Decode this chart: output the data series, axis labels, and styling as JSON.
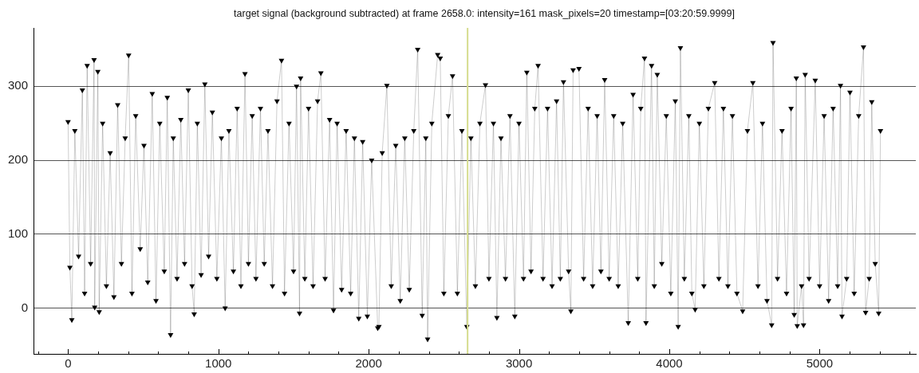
{
  "chart_data": {
    "type": "line",
    "title": "target signal (background subtracted) at frame 2658.0: intensity=161 mask_pixels=20 timestamp=[03:20:59.9999]",
    "x": [
      0,
      12,
      25,
      45,
      70,
      95,
      110,
      127,
      150,
      173,
      177,
      198,
      207,
      230,
      255,
      280,
      305,
      330,
      355,
      380,
      403,
      425,
      450,
      480,
      505,
      530,
      560,
      585,
      610,
      640,
      660,
      682,
      700,
      725,
      750,
      775,
      800,
      825,
      839,
      860,
      885,
      910,
      935,
      960,
      990,
      1020,
      1045,
      1070,
      1100,
      1125,
      1150,
      1177,
      1200,
      1225,
      1250,
      1280,
      1305,
      1330,
      1360,
      1390,
      1420,
      1440,
      1470,
      1500,
      1520,
      1540,
      1547,
      1575,
      1600,
      1630,
      1660,
      1682,
      1710,
      1740,
      1766,
      1790,
      1820,
      1850,
      1880,
      1905,
      1934,
      1960,
      1991,
      2020,
      2060,
      2068,
      2090,
      2121,
      2150,
      2180,
      2210,
      2240,
      2270,
      2300,
      2326,
      2356,
      2380,
      2392,
      2420,
      2459,
      2476,
      2500,
      2530,
      2558,
      2590,
      2620,
      2653,
      2680,
      2710,
      2740,
      2777,
      2800,
      2830,
      2853,
      2880,
      2910,
      2940,
      2972,
      3000,
      3030,
      3052,
      3080,
      3105,
      3127,
      3160,
      3190,
      3220,
      3250,
      3275,
      3296,
      3330,
      3345,
      3360,
      3399,
      3430,
      3460,
      3490,
      3520,
      3545,
      3570,
      3600,
      3630,
      3660,
      3690,
      3727,
      3759,
      3790,
      3810,
      3835,
      3845,
      3882,
      3900,
      3920,
      3950,
      3980,
      4010,
      4040,
      4059,
      4074,
      4100,
      4130,
      4150,
      4172,
      4200,
      4230,
      4260,
      4302,
      4330,
      4360,
      4390,
      4420,
      4450,
      4488,
      4520,
      4556,
      4590,
      4620,
      4650,
      4681,
      4690,
      4720,
      4750,
      4780,
      4810,
      4831,
      4845,
      4851,
      4880,
      4893,
      4904,
      4930,
      4971,
      5000,
      5030,
      5060,
      5090,
      5120,
      5139,
      5149,
      5180,
      5202,
      5230,
      5260,
      5292,
      5306,
      5330,
      5347,
      5370,
      5393,
      5405
    ],
    "values": [
      252,
      55,
      -16,
      240,
      70,
      295,
      20,
      328,
      60,
      336,
      1,
      320,
      -5,
      250,
      30,
      210,
      15,
      275,
      60,
      230,
      342,
      20,
      260,
      80,
      220,
      35,
      290,
      10,
      250,
      50,
      285,
      -36,
      230,
      40,
      255,
      60,
      295,
      30,
      -8,
      250,
      45,
      303,
      70,
      265,
      40,
      230,
      0,
      240,
      50,
      270,
      30,
      317,
      60,
      260,
      40,
      270,
      60,
      240,
      30,
      280,
      335,
      20,
      250,
      50,
      300,
      -7,
      311,
      40,
      270,
      30,
      280,
      318,
      40,
      255,
      -3,
      250,
      25,
      240,
      20,
      230,
      -14,
      225,
      -11,
      200,
      -27,
      -25,
      210,
      301,
      30,
      220,
      10,
      230,
      25,
      240,
      350,
      -10,
      230,
      -42,
      250,
      343,
      338,
      20,
      260,
      314,
      20,
      240,
      -25,
      230,
      30,
      250,
      302,
      40,
      250,
      -13,
      230,
      40,
      260,
      -11,
      250,
      40,
      319,
      50,
      270,
      328,
      40,
      270,
      30,
      280,
      40,
      306,
      50,
      -4,
      322,
      324,
      40,
      270,
      30,
      260,
      50,
      309,
      40,
      260,
      30,
      250,
      -20,
      289,
      40,
      270,
      338,
      -20,
      328,
      30,
      316,
      60,
      260,
      20,
      280,
      -25,
      352,
      40,
      260,
      20,
      -2,
      250,
      30,
      270,
      305,
      40,
      270,
      30,
      260,
      20,
      -4,
      240,
      305,
      30,
      250,
      10,
      -23,
      359,
      40,
      240,
      20,
      270,
      -9,
      311,
      -24,
      30,
      -23,
      316,
      40,
      308,
      30,
      260,
      10,
      270,
      30,
      301,
      -11,
      40,
      292,
      20,
      260,
      353,
      -6,
      40,
      279,
      60,
      -7,
      240
    ],
    "color": "#000000",
    "marker": "triangle",
    "line_style": "solid",
    "xlim": [
      -230,
      5640
    ],
    "xticks": [
      {
        "value": -200,
        "label": null
      },
      0,
      {
        "value": 200,
        "label": null
      },
      {
        "value": 400,
        "label": null
      },
      {
        "value": 600,
        "label": null
      },
      {
        "value": 800,
        "label": null
      },
      1000,
      {
        "value": 1200,
        "label": null
      },
      {
        "value": 1400,
        "label": null
      },
      {
        "value": 1600,
        "label": null
      },
      {
        "value": 1800,
        "label": null
      },
      2000,
      {
        "value": 2200,
        "label": null
      },
      {
        "value": 2400,
        "label": null
      },
      {
        "value": 2600,
        "label": null
      },
      {
        "value": 2800,
        "label": null
      },
      3000,
      {
        "value": 3200,
        "label": null
      },
      {
        "value": 3400,
        "label": null
      },
      {
        "value": 3600,
        "label": null
      },
      {
        "value": 3800,
        "label": null
      },
      4000,
      {
        "value": 4200,
        "label": null
      },
      {
        "value": 4400,
        "label": null
      },
      {
        "value": 4600,
        "label": null
      },
      {
        "value": 4800,
        "label": null
      },
      5000,
      {
        "value": 5200,
        "label": null
      },
      {
        "value": 5400,
        "label": null
      },
      {
        "value": 5600,
        "label": null
      }
    ],
    "ylim": [
      -62,
      379
    ],
    "yticks": [
      0,
      100,
      200,
      300
    ],
    "grid": "y",
    "legend": false,
    "ref_lines": [
      {
        "axis": "x",
        "value": 2658,
        "color": "#d6dc8e"
      }
    ]
  }
}
